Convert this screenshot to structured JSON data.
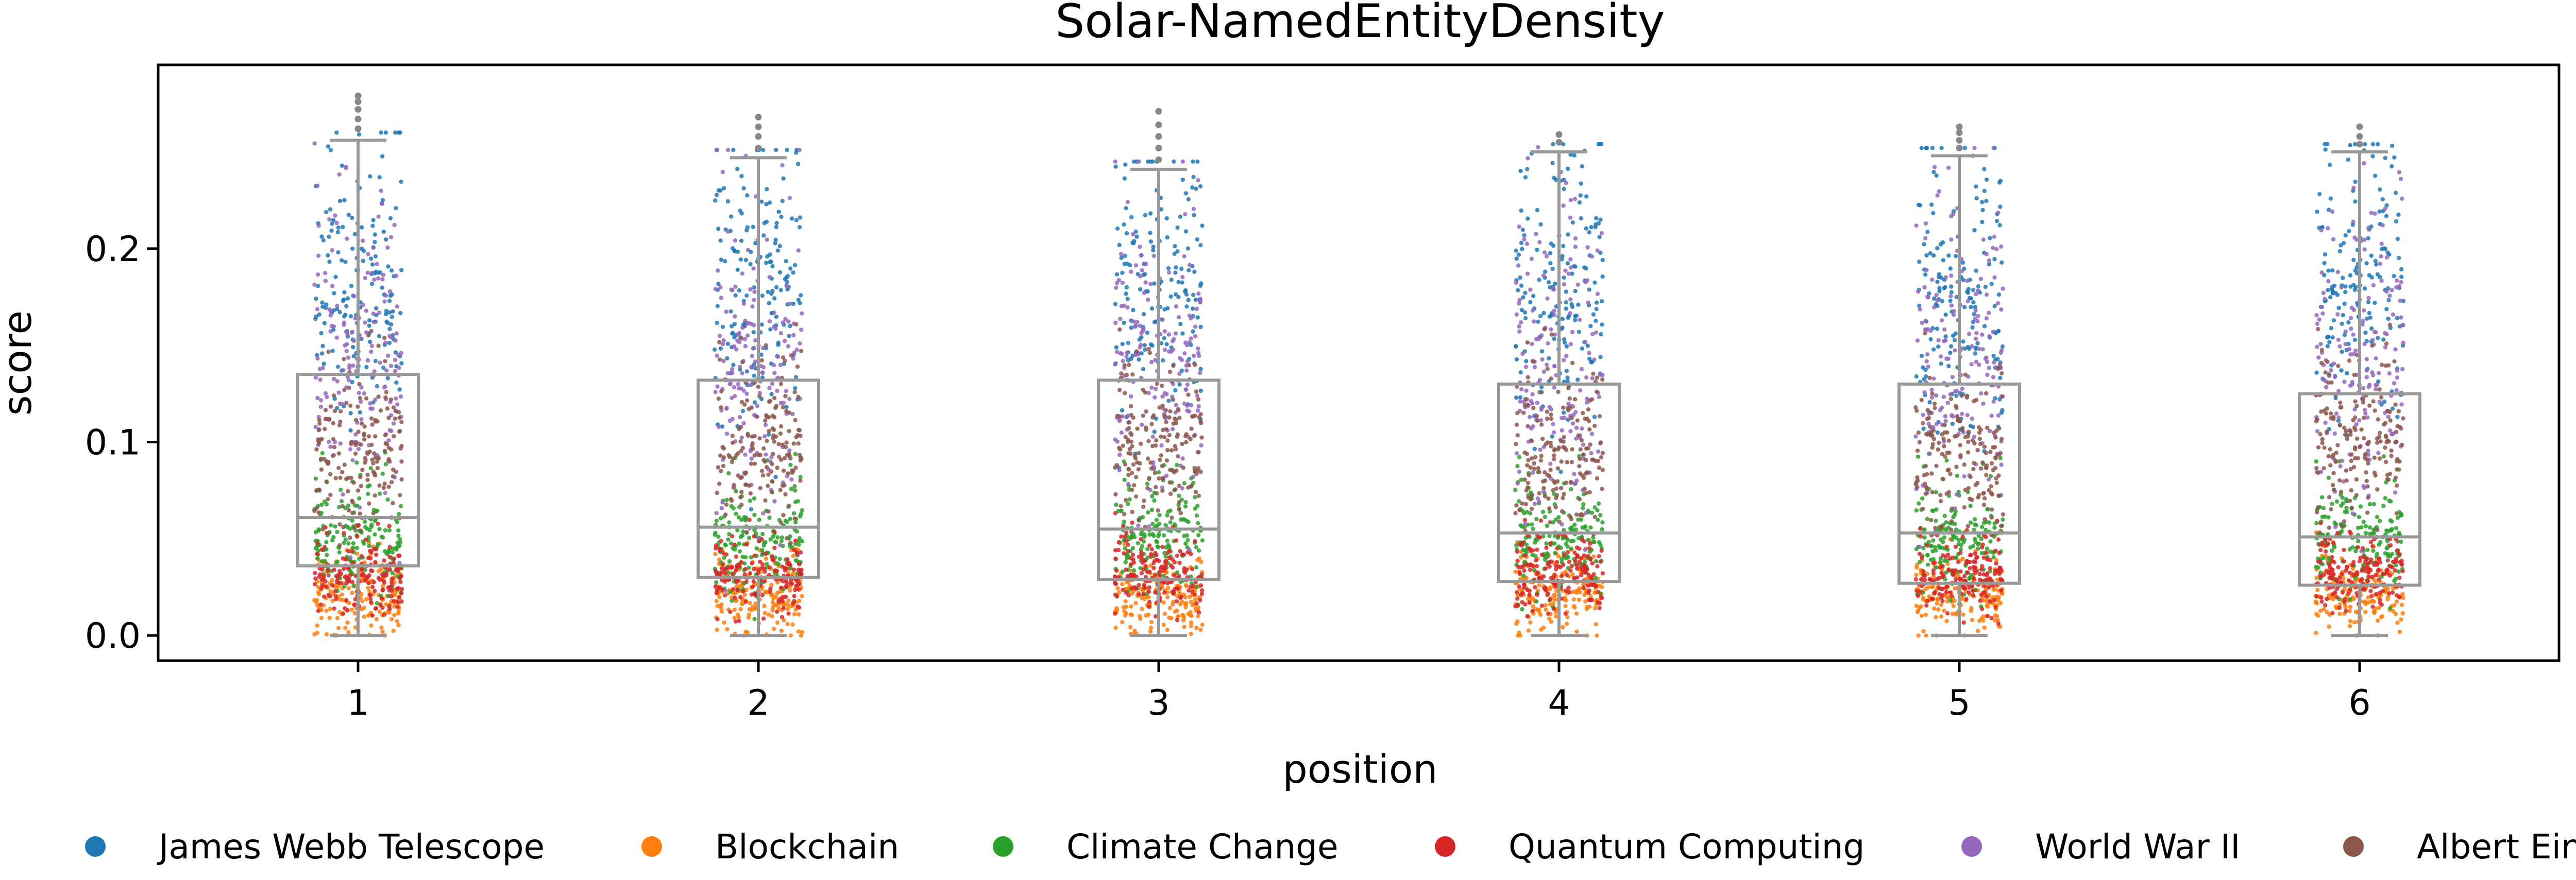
{
  "chart_data": {
    "type": "box",
    "title": "Solar-NamedEntityDensity",
    "xlabel": "position",
    "ylabel": "score",
    "categories": [
      "1",
      "2",
      "3",
      "4",
      "5",
      "6"
    ],
    "ylim": [
      -0.013,
      0.295
    ],
    "yticks": [
      0.0,
      0.1,
      0.2
    ],
    "ytick_labels": [
      "0.0",
      "0.1",
      "0.2"
    ],
    "grid": false,
    "legend_position": "bottom",
    "boxes": [
      {
        "position": "1",
        "whisker_low": 0.0,
        "q1": 0.036,
        "median": 0.061,
        "q3": 0.135,
        "whisker_high": 0.256,
        "outliers": [
          0.262,
          0.267,
          0.272,
          0.276,
          0.279
        ]
      },
      {
        "position": "2",
        "whisker_low": 0.0,
        "q1": 0.03,
        "median": 0.056,
        "q3": 0.132,
        "whisker_high": 0.247,
        "outliers": [
          0.252,
          0.258,
          0.263,
          0.268
        ]
      },
      {
        "position": "3",
        "whisker_low": 0.0,
        "q1": 0.029,
        "median": 0.055,
        "q3": 0.132,
        "whisker_high": 0.241,
        "outliers": [
          0.246,
          0.252,
          0.258,
          0.264,
          0.271
        ]
      },
      {
        "position": "4",
        "whisker_low": 0.0,
        "q1": 0.028,
        "median": 0.053,
        "q3": 0.13,
        "whisker_high": 0.25,
        "outliers": [
          0.255,
          0.259
        ]
      },
      {
        "position": "5",
        "whisker_low": 0.0,
        "q1": 0.027,
        "median": 0.053,
        "q3": 0.13,
        "whisker_high": 0.248,
        "outliers": [
          0.252,
          0.256,
          0.26,
          0.263
        ]
      },
      {
        "position": "6",
        "whisker_low": 0.0,
        "q1": 0.026,
        "median": 0.051,
        "q3": 0.125,
        "whisker_high": 0.25,
        "outliers": [
          0.254,
          0.258,
          0.263
        ]
      }
    ],
    "series": [
      {
        "name": "James Webb Telescope",
        "color": "#1f77b4",
        "typical_score_range": [
          0.1,
          0.25
        ]
      },
      {
        "name": "Blockchain",
        "color": "#ff7f0e",
        "typical_score_range": [
          0.0,
          0.04
        ]
      },
      {
        "name": "Climate Change",
        "color": "#2ca02c",
        "typical_score_range": [
          0.02,
          0.08
        ]
      },
      {
        "name": "Quantum Computing",
        "color": "#d62728",
        "typical_score_range": [
          0.01,
          0.05
        ]
      },
      {
        "name": "World War II",
        "color": "#9467bd",
        "typical_score_range": [
          0.06,
          0.22
        ]
      },
      {
        "name": "Albert Einstein",
        "color": "#8c564b",
        "typical_score_range": [
          0.05,
          0.14
        ]
      }
    ],
    "box_color": "#999999"
  }
}
